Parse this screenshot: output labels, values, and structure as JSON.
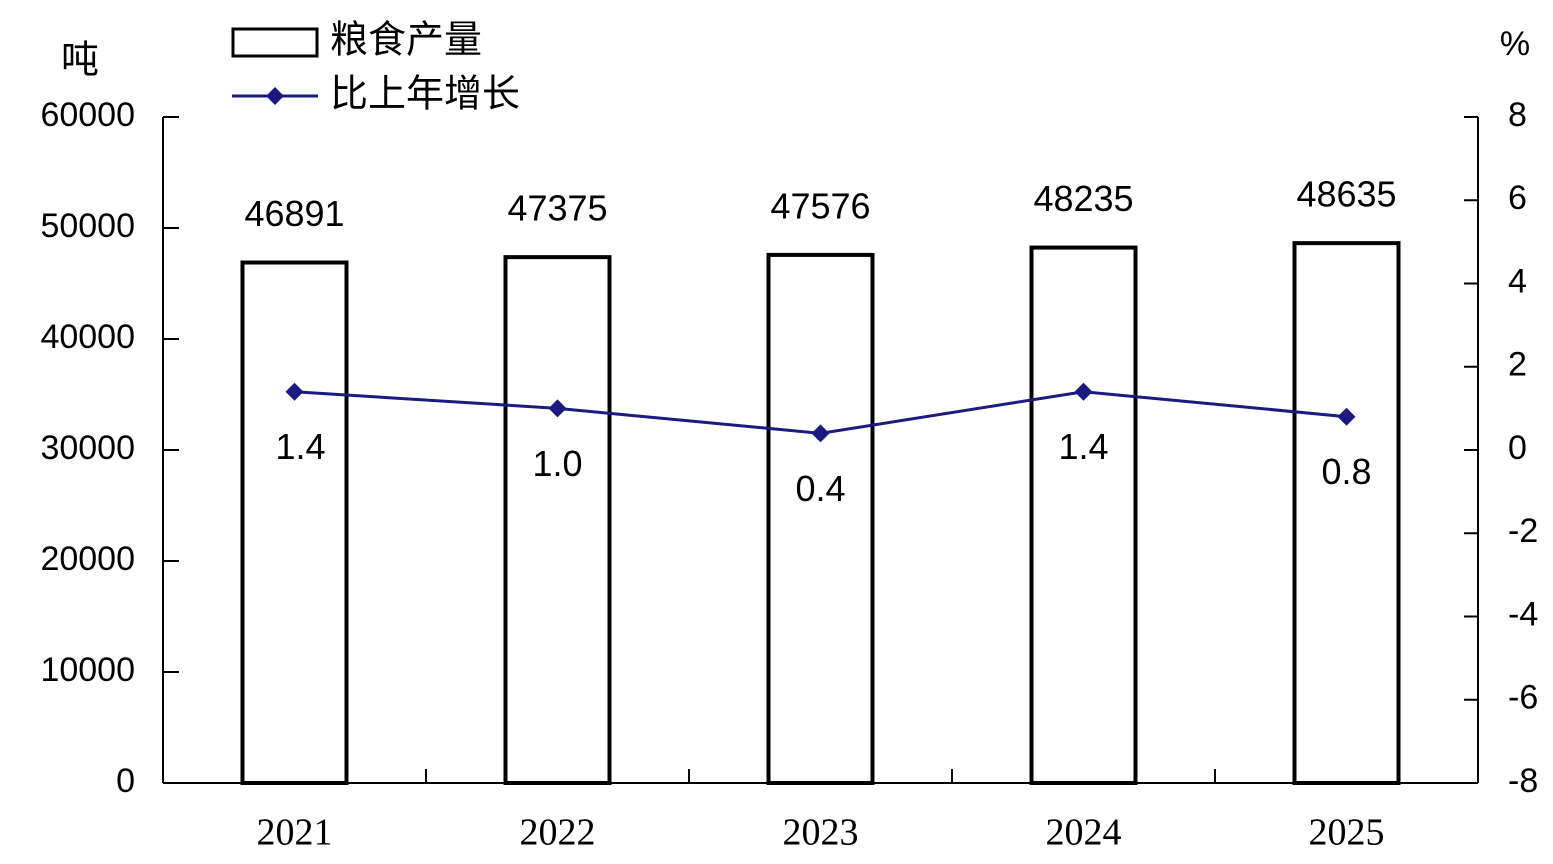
{
  "chart_data": {
    "type": "bar",
    "y_label": "吨",
    "y2_label": "%",
    "categories": [
      "2021",
      "2022",
      "2023",
      "2024",
      "2025"
    ],
    "series": [
      {
        "name": "粮食产量",
        "color": "#ffffff",
        "values": [
          46891,
          47375,
          47576,
          48235,
          48635
        ]
      },
      {
        "name": "比上年增长",
        "type": "line",
        "axis": "y2",
        "color": "#1a1a80",
        "values": [
          1.4,
          1.0,
          0.4,
          1.4,
          0.8
        ],
        "value_labels": [
          "1.4",
          "1.0",
          "0.4",
          "1.4",
          "0.8"
        ]
      }
    ],
    "ylim": [
      0,
      60000
    ],
    "yticks": [
      0,
      10000,
      20000,
      30000,
      40000,
      50000,
      60000
    ],
    "y2lim": [
      -8,
      8
    ],
    "y2ticks": [
      -8,
      -6,
      -4,
      -2,
      0,
      2,
      4,
      6,
      8
    ],
    "grid": false
  }
}
